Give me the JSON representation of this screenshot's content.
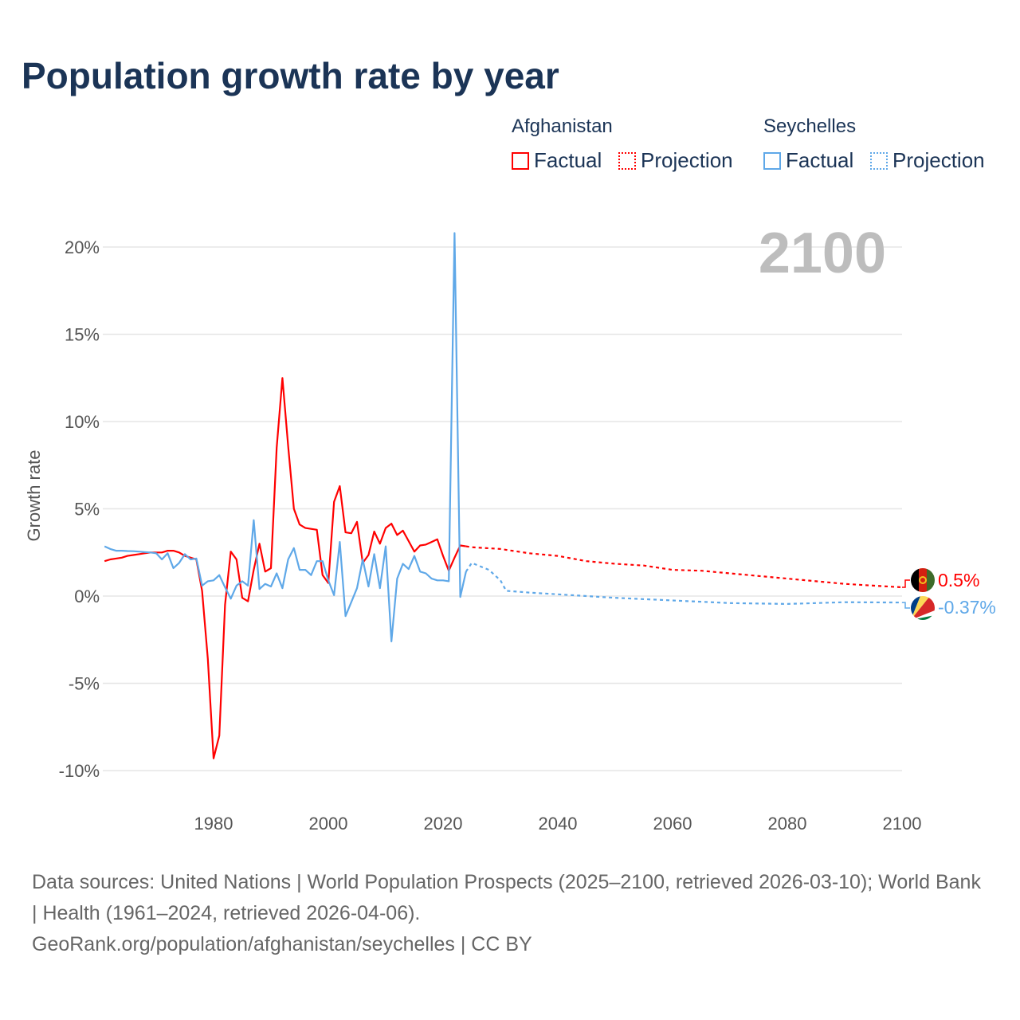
{
  "title": "Population growth rate by year",
  "legend": {
    "groups": [
      {
        "name": "Afghanistan",
        "color": "#ff0000",
        "factual": "Factual",
        "projection": "Projection"
      },
      {
        "name": "Seychelles",
        "color": "#5fa8e8",
        "factual": "Factual",
        "projection": "Projection"
      }
    ]
  },
  "footer": {
    "sources": "Data sources: United Nations | World Population Prospects (2025–2100, retrieved 2026-03-10); World Bank | Health (1961–2024, retrieved 2026-04-06).",
    "link": "GeoRank.org/population/afghanistan/seychelles | CC BY"
  },
  "chart_data": {
    "type": "line",
    "title": "Population growth rate by year",
    "ylabel": "Growth rate",
    "xlabel": "",
    "year_label": "2100",
    "xlim": [
      1961,
      2100
    ],
    "ylim": [
      -12,
      22
    ],
    "xticks": [
      1980,
      2000,
      2020,
      2040,
      2060,
      2080,
      2100
    ],
    "yticks": [
      20,
      15,
      10,
      5,
      0,
      -5,
      -10
    ],
    "ytick_labels": [
      "20%",
      "15%",
      "10%",
      "5%",
      "0%",
      "-5%",
      "-10%"
    ],
    "series": [
      {
        "name": "Afghanistan",
        "color": "#ff0000",
        "end_label": "0.5%",
        "factual_start": 1961,
        "factual": [
          2.0,
          2.1,
          2.15,
          2.2,
          2.3,
          2.35,
          2.4,
          2.45,
          2.5,
          2.5,
          2.5,
          2.6,
          2.6,
          2.5,
          2.3,
          2.2,
          2.1,
          0.3,
          -3.6,
          -9.3,
          -8.0,
          -0.5,
          2.55,
          2.1,
          -0.1,
          -0.3,
          1.5,
          3.0,
          1.4,
          1.6,
          8.5,
          12.5,
          8.6,
          5.0,
          4.1,
          3.9,
          3.85,
          3.8,
          1.2,
          0.75,
          5.4,
          6.3,
          3.65,
          3.6,
          4.25,
          1.9,
          2.35,
          3.7,
          3.0,
          3.9,
          4.15,
          3.5,
          3.75,
          3.15,
          2.55,
          2.9,
          2.95,
          3.1,
          3.25,
          2.3,
          1.45,
          2.2,
          2.9,
          2.85
        ],
        "projection": [
          [
            2024,
            2.85
          ],
          [
            2025,
            2.8
          ],
          [
            2030,
            2.7
          ],
          [
            2035,
            2.45
          ],
          [
            2040,
            2.3
          ],
          [
            2045,
            2.0
          ],
          [
            2050,
            1.85
          ],
          [
            2055,
            1.75
          ],
          [
            2060,
            1.5
          ],
          [
            2065,
            1.45
          ],
          [
            2070,
            1.3
          ],
          [
            2075,
            1.15
          ],
          [
            2080,
            1.0
          ],
          [
            2085,
            0.85
          ],
          [
            2090,
            0.7
          ],
          [
            2095,
            0.6
          ],
          [
            2100,
            0.5
          ]
        ]
      },
      {
        "name": "Seychelles",
        "color": "#5fa8e8",
        "end_label": "-0.37%",
        "factual_start": 1961,
        "factual": [
          2.85,
          2.7,
          2.6,
          2.6,
          2.58,
          2.57,
          2.55,
          2.52,
          2.5,
          2.45,
          2.1,
          2.45,
          1.6,
          1.9,
          2.4,
          2.1,
          2.15,
          0.6,
          0.85,
          0.9,
          1.2,
          0.5,
          -0.15,
          0.6,
          0.85,
          0.6,
          4.35,
          0.4,
          0.7,
          0.55,
          1.3,
          0.45,
          2.1,
          2.75,
          1.5,
          1.5,
          1.2,
          2.0,
          2.0,
          0.9,
          0.05,
          3.1,
          -1.15,
          -0.35,
          0.45,
          2.1,
          0.55,
          2.4,
          0.45,
          2.85,
          -2.6,
          1.0,
          1.85,
          1.55,
          2.3,
          1.4,
          1.3,
          1.0,
          0.9,
          0.9,
          0.85,
          20.8,
          -0.05,
          1.4
        ],
        "projection": [
          [
            2024,
            1.4
          ],
          [
            2025,
            1.9
          ],
          [
            2028,
            1.5
          ],
          [
            2030,
            0.9
          ],
          [
            2031,
            0.3
          ],
          [
            2035,
            0.2
          ],
          [
            2040,
            0.1
          ],
          [
            2050,
            -0.1
          ],
          [
            2060,
            -0.25
          ],
          [
            2070,
            -0.4
          ],
          [
            2080,
            -0.45
          ],
          [
            2090,
            -0.35
          ],
          [
            2100,
            -0.37
          ]
        ]
      }
    ]
  }
}
